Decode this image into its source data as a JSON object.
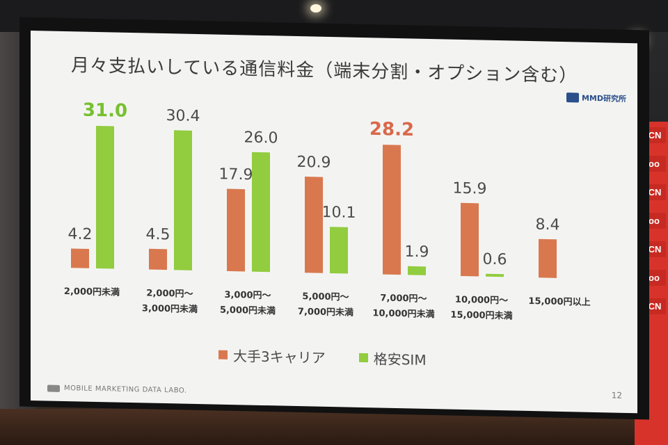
{
  "slide": {
    "title": "月々支払いしている通信料金（端末分割・オプション含む）",
    "brand": "MMD研究所",
    "footer": "MOBILE MARKETING DATA LABO.",
    "page_number": "12"
  },
  "banners": [
    "OCN",
    "goo",
    "OCN",
    "goo",
    "OCN",
    "goo",
    "OCN"
  ],
  "chart_data": {
    "type": "bar",
    "title": "月々支払いしている通信料金（端末分割・オプション含む）",
    "categories": [
      [
        "2,000円未満"
      ],
      [
        "2,000円～",
        "3,000円未満"
      ],
      [
        "3,000円～",
        "5,000円未満"
      ],
      [
        "5,000円～",
        "7,000円未満"
      ],
      [
        "7,000円～",
        "10,000円未満"
      ],
      [
        "10,000円～",
        "15,000円未満"
      ],
      [
        "15,000円以上"
      ]
    ],
    "series": [
      {
        "name": "大手3キャリア",
        "color": "#d9784f",
        "values": [
          4.2,
          4.5,
          17.9,
          20.9,
          28.2,
          15.9,
          8.4
        ],
        "labels": [
          "4.2",
          "4.5",
          "17.9",
          "20.9",
          "28.2",
          "15.9",
          "8.4"
        ],
        "highlight_index": 4,
        "highlight_color": "#d9684a"
      },
      {
        "name": "格安SIM",
        "color": "#92cc3f",
        "values": [
          31.0,
          30.4,
          26.0,
          10.1,
          1.9,
          0.6,
          null
        ],
        "labels": [
          "31.0",
          "30.4",
          "26.0",
          "10.1",
          "1.9",
          "0.6",
          ""
        ],
        "highlight_index": 0,
        "highlight_color": "#78c030"
      }
    ],
    "ylim": [
      0,
      31
    ],
    "grid": false,
    "legend": "bottom-center"
  }
}
